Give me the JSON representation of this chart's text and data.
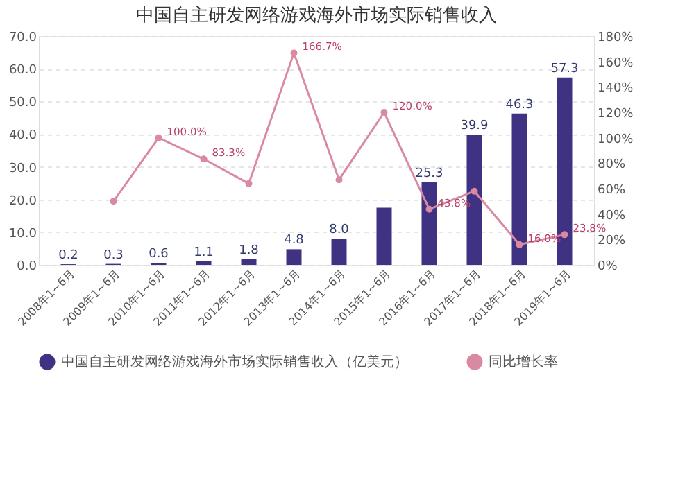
{
  "chart_data": {
    "type": "bar",
    "title": "中国自主研发网络游戏海外市场实际销售收入",
    "categories": [
      "2008年1~6月",
      "2009年1~6月",
      "2010年1~6月",
      "2011年1~6月",
      "2012年1~6月",
      "2013年1~6月",
      "2014年1~6月",
      "2015年1~6月",
      "2016年1~6月",
      "2017年1~6月",
      "2018年1~6月",
      "2019年1~6月"
    ],
    "series": [
      {
        "name": "中国自主研发网络游戏海外市场实际销售收入（亿美元）",
        "color": "#3f3282",
        "values": [
          0.2,
          0.3,
          0.6,
          1.1,
          1.8,
          4.8,
          8.0,
          17.5,
          25.3,
          39.9,
          46.3,
          57.3
        ],
        "value_labels": [
          "0.2",
          "0.3",
          "0.6",
          "1.1",
          "1.8",
          "4.8",
          "8.0",
          null,
          "25.3",
          "39.9",
          "46.3",
          "57.3"
        ]
      },
      {
        "name": "同比增长率",
        "type": "line",
        "axis": "y2",
        "color": "#d98aa0",
        "values": [
          null,
          50.0,
          100.0,
          83.3,
          64,
          166.7,
          67,
          120.0,
          43.8,
          58,
          16.0,
          23.8
        ],
        "value_labels": [
          null,
          null,
          "100.0%",
          "83.3%",
          null,
          "166.7%",
          null,
          "120.0%",
          "43.8%",
          null,
          "16.0%",
          "23.8%"
        ]
      }
    ],
    "ylim": [
      0,
      70
    ],
    "yticks": [
      {
        "value": 0,
        "label": "0.0"
      },
      {
        "value": 10,
        "label": "10.0"
      },
      {
        "value": 20,
        "label": "20.0"
      },
      {
        "value": 30,
        "label": "30.0"
      },
      {
        "value": 40,
        "label": "40.0"
      },
      {
        "value": 50,
        "label": "50.0"
      },
      {
        "value": 60,
        "label": "60.0"
      },
      {
        "value": 70,
        "label": "70.0"
      }
    ],
    "y2lim": [
      0,
      180
    ],
    "y2ticks": [
      {
        "value": 0,
        "label": "0%"
      },
      {
        "value": 20,
        "label": "20%"
      },
      {
        "value": 40,
        "label": "40%"
      },
      {
        "value": 60,
        "label": "60%"
      },
      {
        "value": 80,
        "label": "80%"
      },
      {
        "value": 100,
        "label": "100%"
      },
      {
        "value": 120,
        "label": "120%"
      },
      {
        "value": 140,
        "label": "140%"
      },
      {
        "value": 160,
        "label": "160%"
      },
      {
        "value": 180,
        "label": "180%"
      }
    ],
    "grid": "y",
    "legend": "bottom",
    "marker": "circle"
  }
}
